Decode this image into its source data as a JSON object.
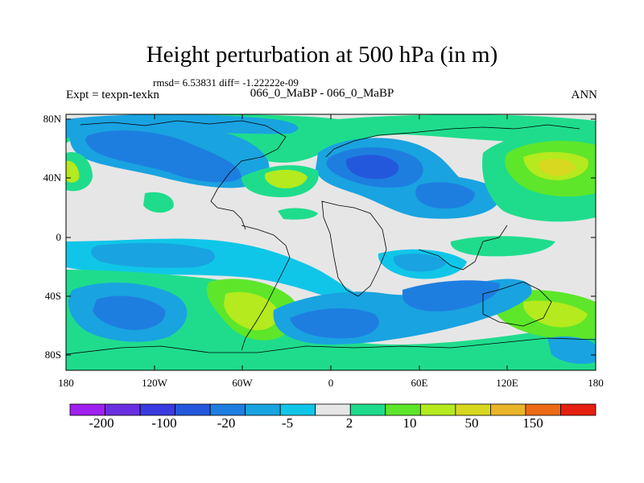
{
  "title": "Height perturbation at 500 hPa (in m)",
  "stats": "rmsd= 6.53831 diff= -1.22222e-09",
  "experiment": "Expt = texpn-texkn",
  "case_label": "066_0_MaBP - 066_0_MaBP",
  "season": "ANN",
  "lat_ticks": [
    "80N",
    "40N",
    "0",
    "40S",
    "80S"
  ],
  "lon_ticks": [
    "180",
    "120W",
    "60W",
    "0",
    "60E",
    "120E",
    "180"
  ],
  "colorbar": {
    "labels": [
      "-200",
      "-100",
      "-20",
      "-5",
      "2",
      "10",
      "50",
      "150"
    ],
    "colors": [
      "#a020f0",
      "#6a2fe0",
      "#3a3ae0",
      "#2458dc",
      "#1e7ee0",
      "#19a3e0",
      "#10c6e8",
      "#e6e6e6",
      "#1fdc8c",
      "#5ee62a",
      "#b4ea1e",
      "#d8d820",
      "#eab428",
      "#ec6a14",
      "#e62010"
    ]
  },
  "colors": {
    "background_field": "#e6e6e6",
    "weak_negative": "#10c6e8",
    "moderate_negative": "#19a3e0",
    "strong_negative": "#1e7ee0",
    "weak_positive": "#1fdc8c",
    "moderate_positive": "#5ee62a",
    "strong_positive": "#b4ea1e",
    "max_positive": "#d8d820"
  }
}
